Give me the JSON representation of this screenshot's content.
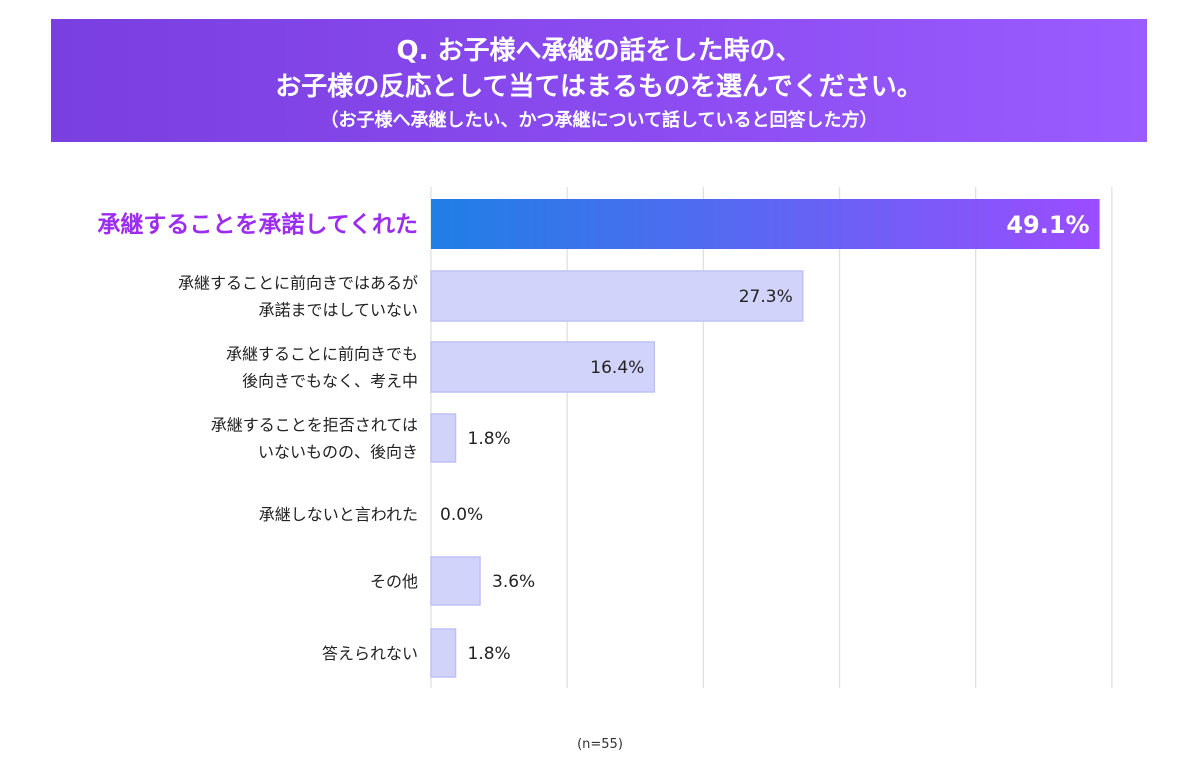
{
  "header": {
    "title_line1": "Q. お子様へ承継の話をした時の、",
    "title_line2": "お子様の反応として当てはまるものを選んでください。",
    "subtitle": "（お子様へ承継したい、かつ承継について話していると回答した方）"
  },
  "footer": {
    "note": "(n=55)"
  },
  "chart_data": {
    "type": "bar",
    "orientation": "horizontal",
    "categories": [
      [
        "承継することを承諾してくれた"
      ],
      [
        "承継することに前向きではあるが",
        "承諾まではしていない"
      ],
      [
        "承継することに前向きでも",
        "後向きでもなく、考え中"
      ],
      [
        "承継することを拒否されては",
        "いないものの、後向き"
      ],
      [
        "承継しないと言われた"
      ],
      [
        "その他"
      ],
      [
        "答えられない"
      ]
    ],
    "values": [
      49.1,
      27.3,
      16.4,
      1.8,
      0.0,
      3.6,
      1.8
    ],
    "value_labels": [
      "49.1%",
      "27.3%",
      "16.4%",
      "1.8%",
      "0.0%",
      "3.6%",
      "1.8%"
    ],
    "highlight_index": 0,
    "xlim": [
      0,
      50
    ],
    "grid": true,
    "colors": {
      "highlight_start": "#1f7fe6",
      "highlight_end": "#9b4dff",
      "highlight_label": "#9b2cf0",
      "bar": "#d2d3fb",
      "bar_border": "#bfc1f6",
      "grid": "#e0e0e0",
      "text": "#222222"
    }
  }
}
